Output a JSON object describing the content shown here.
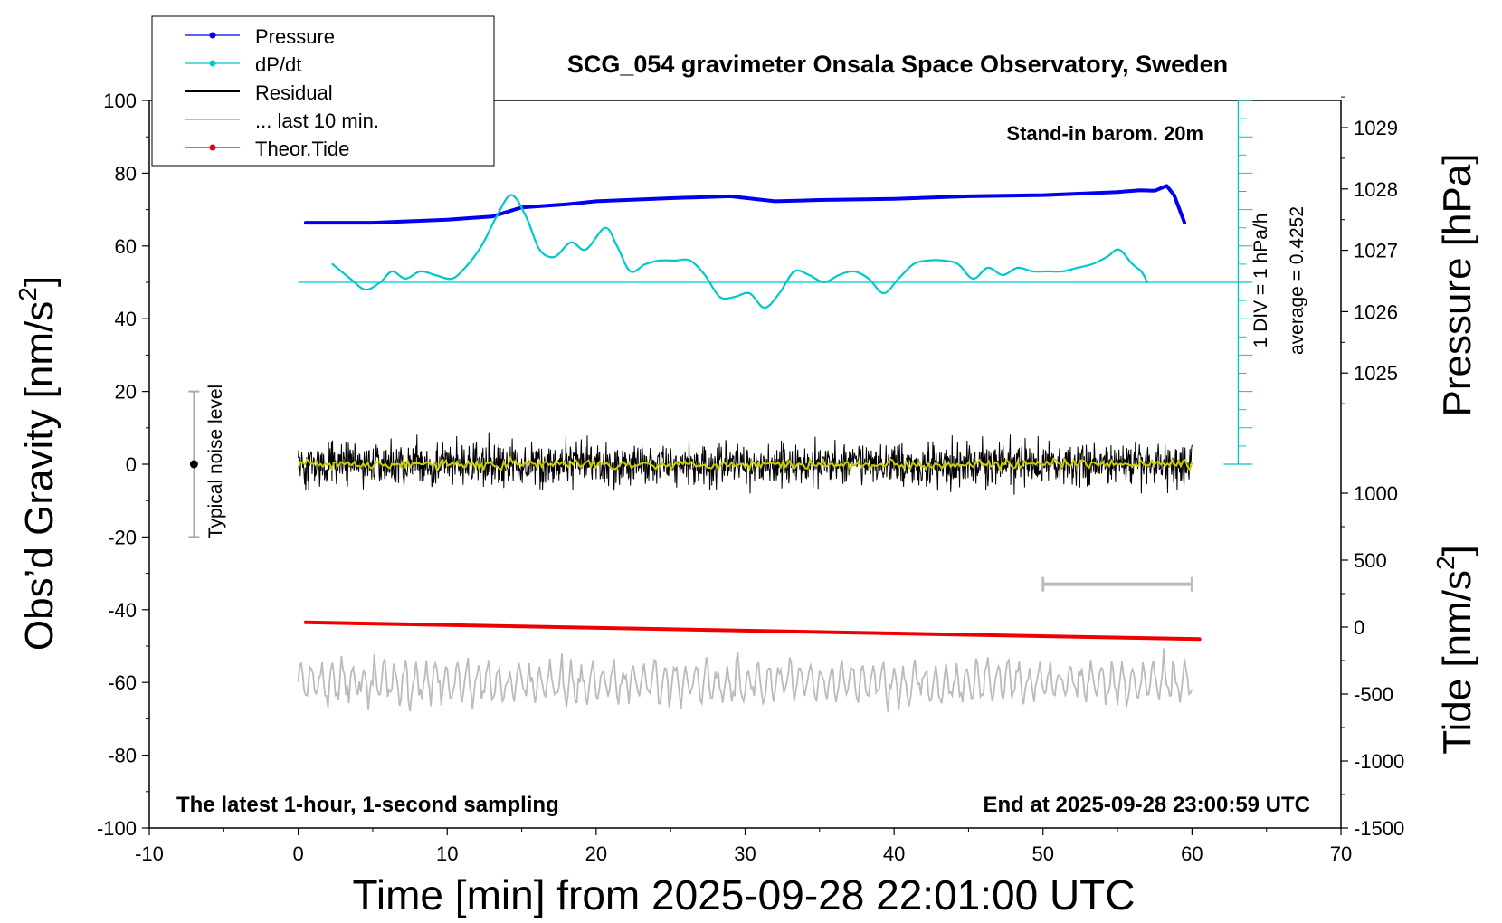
{
  "chart_data": {
    "type": "line",
    "title": "SCG_054 gravimeter Onsala Space Observatory, Sweden",
    "subtitle_left": "The latest 1-hour, 1-second sampling",
    "subtitle_right": "End at 2025-09-28 23:00:59 UTC",
    "barometer_note": "Stand-in barom. 20m",
    "xlabel": "Time [min] from 2025-09-28 22:01:00 UTC",
    "ylabel_left": "Obs’d Gravity [nm/s",
    "ylabel_left_sup": "2",
    "ylabel_left_end": "]",
    "ylabel_right_pressure": "Pressure [hPa]",
    "ylabel_right_tide": "Tide [nm/s",
    "ylabel_right_tide_sup": "2",
    "ylabel_right_tide_end": "]",
    "xlim": [
      -10,
      70
    ],
    "ylim": [
      -100,
      100
    ],
    "x_ticks": [
      "-10",
      "0",
      "10",
      "20",
      "30",
      "40",
      "50",
      "60",
      "70"
    ],
    "y_ticks": [
      "-100",
      "-80",
      "-60",
      "-40",
      "-20",
      "0",
      "20",
      "40",
      "60",
      "80",
      "100"
    ],
    "pressure_ticks": [
      "1025",
      "1026",
      "1027",
      "1028",
      "1029"
    ],
    "pressure_range": [
      1024.0,
      1029.9
    ],
    "tide_ticks": [
      "-1500",
      "-1000",
      "-500",
      "0",
      "500",
      "1000"
    ],
    "tide_range": [
      -1500,
      1000
    ],
    "noise_label": "Typical noise level",
    "noise_bar": [
      -20,
      20
    ],
    "dpdt_scale_label": "1 DIV = 1 hPa/h",
    "dpdt_average_label": "average = 0.4252",
    "last10_range": [
      50,
      60
    ],
    "legend": [
      {
        "name": "Pressure",
        "color": "#0000ee",
        "marker": true
      },
      {
        "name": "dP/dt",
        "color": "#00c8c8",
        "marker": true
      },
      {
        "name": "Residual",
        "color": "#000000",
        "marker": false
      },
      {
        "name": "... last 10 min.",
        "color": "#bbbbbb",
        "marker": false
      },
      {
        "name": "Theor.Tide",
        "color": "#ee0000",
        "marker": true
      }
    ],
    "series": [
      {
        "name": "Pressure",
        "color": "#0000ee",
        "axis": "pressure",
        "x": [
          0.5,
          5,
          10,
          13,
          15,
          18,
          20,
          25,
          29,
          32,
          35,
          40,
          45,
          50,
          53,
          55,
          56.5,
          57.5,
          58.3,
          58.8,
          59.5
        ],
        "y": [
          1027.45,
          1027.45,
          1027.5,
          1027.55,
          1027.7,
          1027.75,
          1027.8,
          1027.85,
          1027.88,
          1027.8,
          1027.82,
          1027.84,
          1027.88,
          1027.9,
          1027.93,
          1027.95,
          1027.98,
          1027.97,
          1028.05,
          1027.9,
          1027.45
        ]
      },
      {
        "name": "dP/dt",
        "color": "#00c8c8",
        "axis": "gravity",
        "x": [
          2.3,
          3.5,
          4.5,
          5.5,
          6.3,
          7.2,
          8.2,
          9.2,
          10.3,
          11.2,
          12.3,
          13.3,
          14.3,
          15.3,
          16.2,
          17.2,
          18.3,
          19.3,
          20.6,
          21.4,
          22.3,
          23.3,
          24.3,
          25.3,
          26.3,
          27.3,
          28.3,
          29.3,
          30.3,
          31.3,
          32.3,
          33.3,
          34.3,
          35.3,
          36.3,
          37.3,
          38.3,
          39.3,
          40.3,
          41.3,
          42.3,
          43.3,
          44.3,
          45.3,
          46.3,
          47.3,
          48.3,
          49.3,
          50.3,
          51.3,
          52.3,
          53.3,
          54.3,
          55.1,
          56.0,
          56.6,
          57.0
        ],
        "y": [
          55,
          51,
          48,
          50,
          53,
          51,
          53,
          52,
          51,
          54,
          60,
          68,
          74,
          68,
          59,
          57,
          61,
          59,
          65,
          60,
          53,
          55,
          56,
          56,
          56,
          52,
          46,
          46,
          47,
          43,
          47,
          53,
          52,
          50,
          52,
          53,
          51,
          47,
          51,
          55,
          56,
          56,
          55,
          51,
          54,
          52,
          54,
          53,
          53,
          53,
          54,
          55,
          57,
          59,
          55,
          53,
          50
        ]
      },
      {
        "name": "Theor.Tide",
        "color": "#ee0000",
        "axis": "tide",
        "x": [
          0.5,
          60.5
        ],
        "y": [
          35,
          -90
        ]
      }
    ],
    "residual": {
      "name": "Residual",
      "x_start": 0.0,
      "x_end": 60.0,
      "center": 0,
      "amplitude": 6
    },
    "last10": {
      "name": "... last 10 min.",
      "x_start": 0.0,
      "x_end": 60.0,
      "center": -60,
      "amplitude": 5
    }
  }
}
